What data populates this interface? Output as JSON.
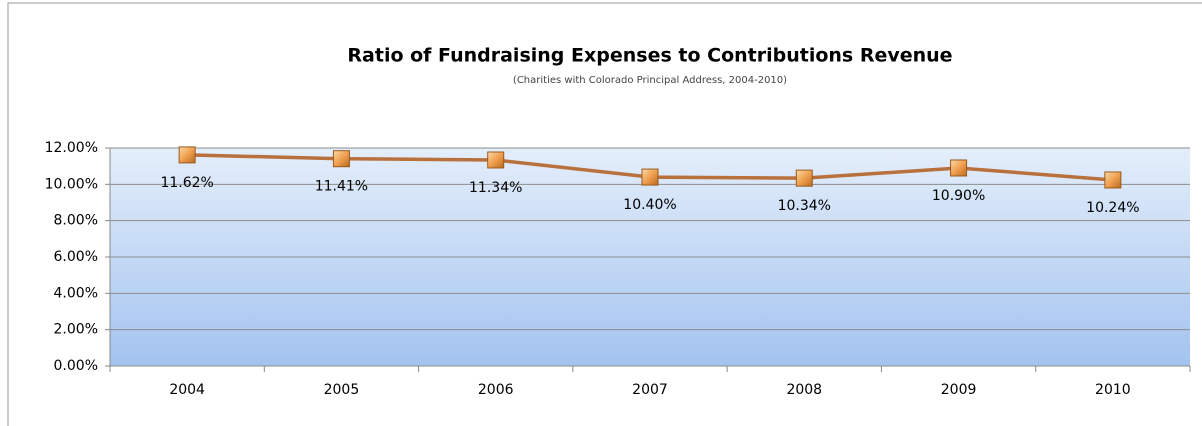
{
  "chart_data": {
    "type": "line",
    "title": "Ratio of Fundraising Expenses to Contributions Revenue",
    "subtitle": "(Charities with Colorado Principal Address, 2004-2010)",
    "categories": [
      "2004",
      "2005",
      "2006",
      "2007",
      "2008",
      "2009",
      "2010"
    ],
    "series": [
      {
        "name": "Ratio",
        "color": "#b8703c",
        "values": [
          11.62,
          11.41,
          11.34,
          10.4,
          10.34,
          10.9,
          10.24
        ],
        "value_labels": [
          "11.62%",
          "11.41%",
          "11.34%",
          "10.40%",
          "10.34%",
          "10.90%",
          "10.24%"
        ]
      }
    ],
    "ylim": [
      0,
      12
    ],
    "yticks": [
      {
        "value": 0,
        "label": "0.00%"
      },
      {
        "value": 2,
        "label": "2.00%"
      },
      {
        "value": 4,
        "label": "4.00%"
      },
      {
        "value": 6,
        "label": "6.00%"
      },
      {
        "value": 8,
        "label": "8.00%"
      },
      {
        "value": 10,
        "label": "10.00%"
      },
      {
        "value": 12,
        "label": "12.00%"
      }
    ],
    "grid": true
  }
}
